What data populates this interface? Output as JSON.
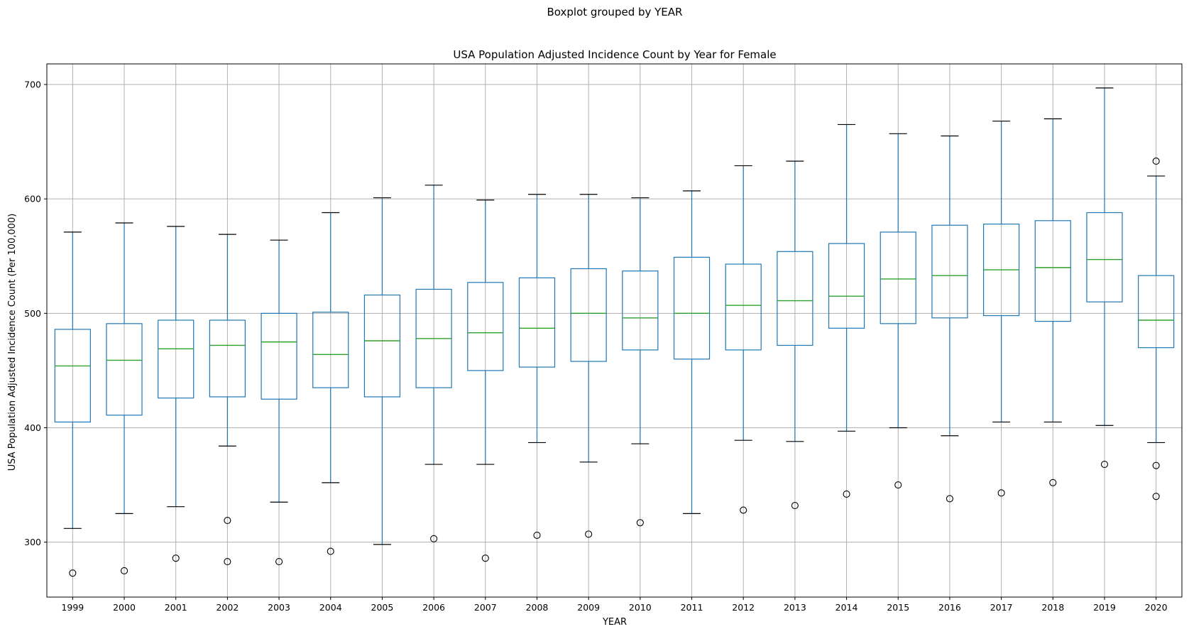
{
  "chart_data": {
    "type": "box",
    "suptitle": "Boxplot grouped by YEAR",
    "title": "USA Population Adjusted Incidence Count by Year for Female",
    "xlabel": "YEAR",
    "ylabel": "USA Population Adjusted Incidence Count (Per 100,000)",
    "ylim": [
      252,
      718
    ],
    "yticks": [
      300,
      400,
      500,
      600,
      700
    ],
    "grid": true,
    "colors": {
      "box": "#1f77b4",
      "median": "#2ca02c",
      "cap": "#000000",
      "flier": "#000000",
      "grid": "#b0b0b0"
    },
    "categories": [
      "1999",
      "2000",
      "2001",
      "2002",
      "2003",
      "2004",
      "2005",
      "2006",
      "2007",
      "2008",
      "2009",
      "2010",
      "2011",
      "2012",
      "2013",
      "2014",
      "2015",
      "2016",
      "2017",
      "2018",
      "2019",
      "2020"
    ],
    "boxes": [
      {
        "year": "1999",
        "whislo": 312,
        "q1": 405,
        "med": 454,
        "q3": 486,
        "whishi": 571,
        "fliers": [
          273
        ]
      },
      {
        "year": "2000",
        "whislo": 325,
        "q1": 411,
        "med": 459,
        "q3": 491,
        "whishi": 579,
        "fliers": [
          275
        ]
      },
      {
        "year": "2001",
        "whislo": 331,
        "q1": 426,
        "med": 469,
        "q3": 494,
        "whishi": 576,
        "fliers": [
          286
        ]
      },
      {
        "year": "2002",
        "whislo": 384,
        "q1": 427,
        "med": 472,
        "q3": 494,
        "whishi": 569,
        "fliers": [
          319,
          283
        ]
      },
      {
        "year": "2003",
        "whislo": 335,
        "q1": 425,
        "med": 475,
        "q3": 500,
        "whishi": 564,
        "fliers": [
          283
        ]
      },
      {
        "year": "2004",
        "whislo": 352,
        "q1": 435,
        "med": 464,
        "q3": 501,
        "whishi": 588,
        "fliers": [
          292
        ]
      },
      {
        "year": "2005",
        "whislo": 298,
        "q1": 427,
        "med": 476,
        "q3": 516,
        "whishi": 601,
        "fliers": []
      },
      {
        "year": "2006",
        "whislo": 368,
        "q1": 435,
        "med": 478,
        "q3": 521,
        "whishi": 612,
        "fliers": [
          303
        ]
      },
      {
        "year": "2007",
        "whislo": 368,
        "q1": 450,
        "med": 483,
        "q3": 527,
        "whishi": 599,
        "fliers": [
          286
        ]
      },
      {
        "year": "2008",
        "whislo": 387,
        "q1": 453,
        "med": 487,
        "q3": 531,
        "whishi": 604,
        "fliers": [
          306
        ]
      },
      {
        "year": "2009",
        "whislo": 370,
        "q1": 458,
        "med": 500,
        "q3": 539,
        "whishi": 604,
        "fliers": [
          307
        ]
      },
      {
        "year": "2010",
        "whislo": 386,
        "q1": 468,
        "med": 496,
        "q3": 537,
        "whishi": 601,
        "fliers": [
          317
        ]
      },
      {
        "year": "2011",
        "whislo": 325,
        "q1": 460,
        "med": 500,
        "q3": 549,
        "whishi": 607,
        "fliers": []
      },
      {
        "year": "2012",
        "whislo": 389,
        "q1": 468,
        "med": 507,
        "q3": 543,
        "whishi": 629,
        "fliers": [
          328
        ]
      },
      {
        "year": "2013",
        "whislo": 388,
        "q1": 472,
        "med": 511,
        "q3": 554,
        "whishi": 633,
        "fliers": [
          332
        ]
      },
      {
        "year": "2014",
        "whislo": 397,
        "q1": 487,
        "med": 515,
        "q3": 561,
        "whishi": 665,
        "fliers": [
          342
        ]
      },
      {
        "year": "2015",
        "whislo": 400,
        "q1": 491,
        "med": 530,
        "q3": 571,
        "whishi": 657,
        "fliers": [
          350
        ]
      },
      {
        "year": "2016",
        "whislo": 393,
        "q1": 496,
        "med": 533,
        "q3": 577,
        "whishi": 655,
        "fliers": [
          338
        ]
      },
      {
        "year": "2017",
        "whislo": 405,
        "q1": 498,
        "med": 538,
        "q3": 578,
        "whishi": 668,
        "fliers": [
          343
        ]
      },
      {
        "year": "2018",
        "whislo": 405,
        "q1": 493,
        "med": 540,
        "q3": 581,
        "whishi": 670,
        "fliers": [
          352
        ]
      },
      {
        "year": "2019",
        "whislo": 402,
        "q1": 510,
        "med": 547,
        "q3": 588,
        "whishi": 697,
        "fliers": [
          368
        ]
      },
      {
        "year": "2020",
        "whislo": 387,
        "q1": 470,
        "med": 494,
        "q3": 533,
        "whishi": 620,
        "fliers": [
          633,
          367,
          340
        ]
      }
    ]
  }
}
